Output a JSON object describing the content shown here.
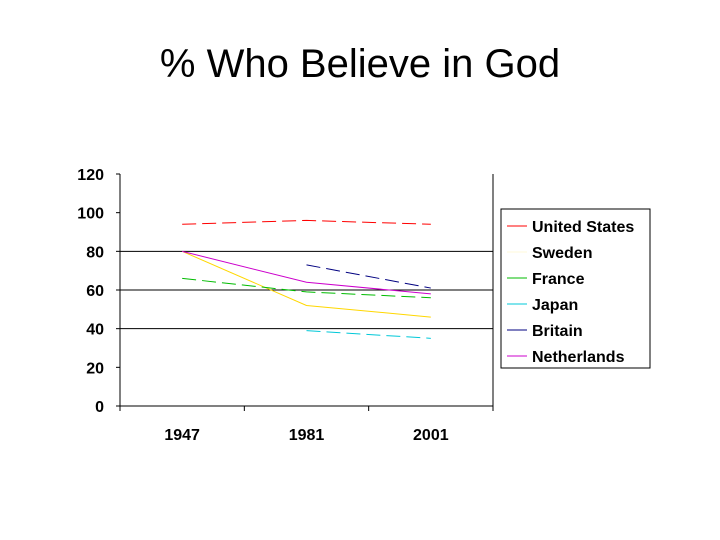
{
  "page": {
    "title": "% Who Believe in God"
  },
  "chart_data": {
    "type": "line",
    "title": "% Who Believe in God",
    "xlabel": "",
    "ylabel": "",
    "categories": [
      "1947",
      "1981",
      "2001"
    ],
    "ylim": [
      0,
      120
    ],
    "yticks": [
      0,
      20,
      40,
      60,
      80,
      100,
      120
    ],
    "grid": "horizontal at 40, 60, 80",
    "legend_position": "right",
    "series": [
      {
        "name": "United States",
        "values": [
          94,
          96,
          94
        ],
        "color": "#ff0000",
        "dash": "dashed"
      },
      {
        "name": "Sweden",
        "values": [
          80,
          52,
          46
        ],
        "color": "#ffd700",
        "dash": "solid"
      },
      {
        "name": "France",
        "values": [
          66,
          59,
          56
        ],
        "color": "#00bb00",
        "dash": "dashed"
      },
      {
        "name": "Japan",
        "values": [
          null,
          39,
          35
        ],
        "color": "#00c8d8",
        "dash": "dashed"
      },
      {
        "name": "Britain",
        "values": [
          null,
          73,
          61
        ],
        "color": "#000080",
        "dash": "dashed"
      },
      {
        "name": "Netherlands",
        "values": [
          80,
          64,
          58
        ],
        "color": "#cc00cc",
        "dash": "solid"
      }
    ]
  }
}
